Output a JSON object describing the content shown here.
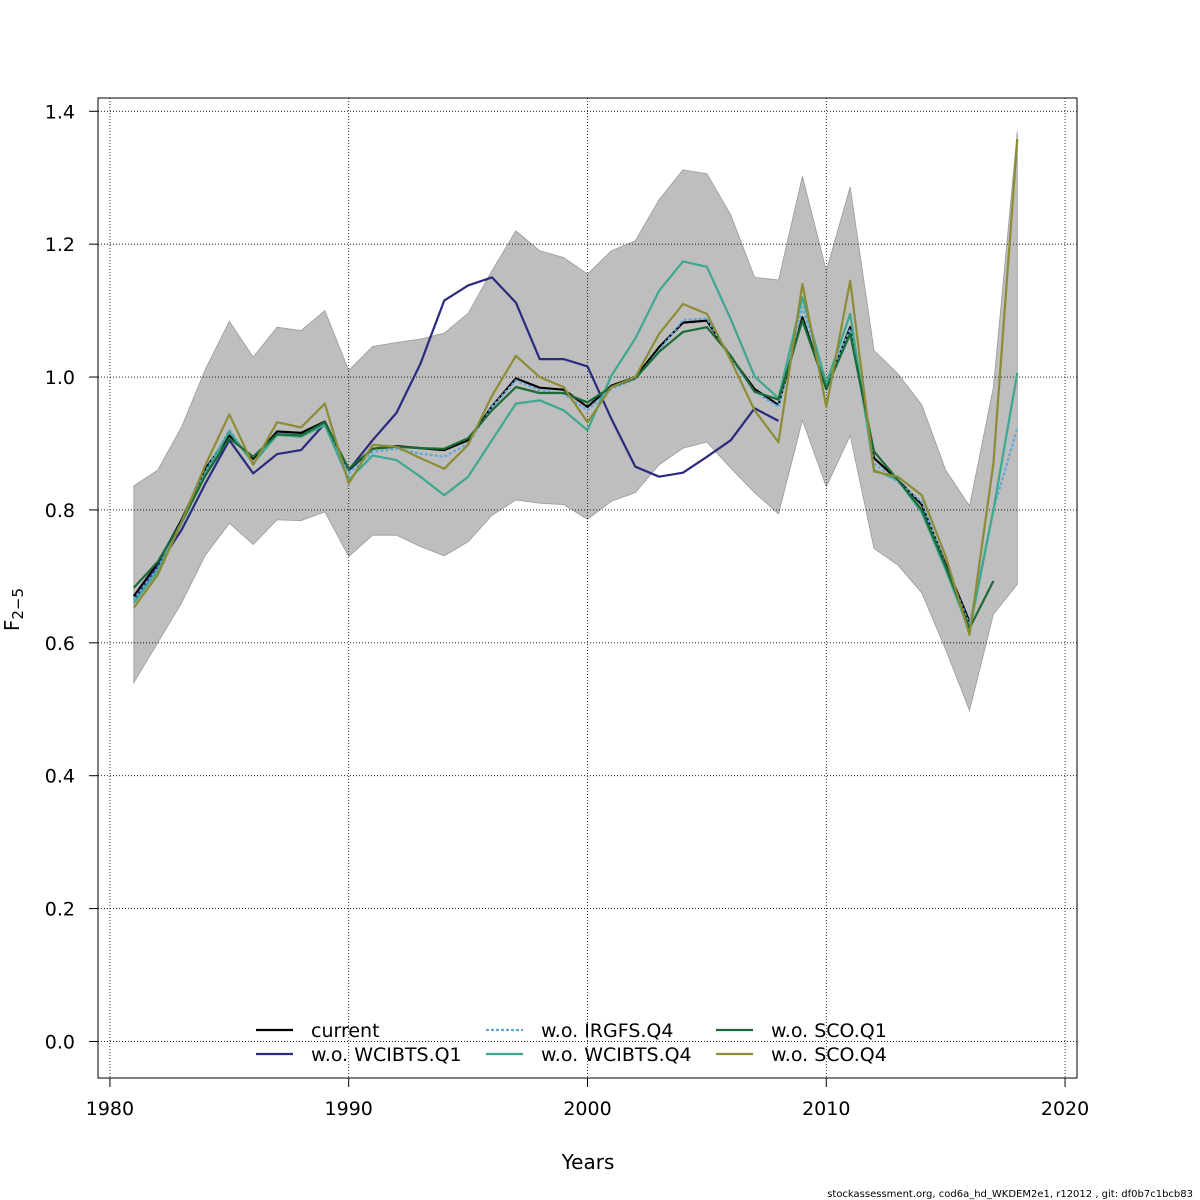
{
  "chart_data": {
    "type": "line",
    "title": "",
    "xlabel": "Years",
    "ylabel_main": "F",
    "ylabel_sub": "2−5",
    "xlim": [
      1979.5,
      2020.5
    ],
    "ylim": [
      -0.055,
      1.42
    ],
    "x_ticks": [
      1980,
      1990,
      2000,
      2010,
      2020
    ],
    "y_ticks": [
      0.0,
      0.2,
      0.4,
      0.6,
      0.8,
      1.0,
      1.2,
      1.4
    ],
    "grid": true,
    "legend_position": "bottom",
    "x": [
      1981,
      1982,
      1983,
      1984,
      1985,
      1986,
      1987,
      1988,
      1989,
      1990,
      1991,
      1992,
      1993,
      1994,
      1995,
      1996,
      1997,
      1998,
      1999,
      2000,
      2001,
      2002,
      2003,
      2004,
      2005,
      2006,
      2007,
      2008,
      2009,
      2010,
      2011,
      2012,
      2013,
      2014,
      2015,
      2016,
      2017,
      2018
    ],
    "band": {
      "color": "#bebebe",
      "upper": [
        0.836,
        0.86,
        0.925,
        1.012,
        1.084,
        1.03,
        1.075,
        1.07,
        1.1,
        1.01,
        1.046,
        1.052,
        1.057,
        1.066,
        1.096,
        1.16,
        1.22,
        1.19,
        1.18,
        1.155,
        1.19,
        1.205,
        1.267,
        1.312,
        1.306,
        1.244,
        1.15,
        1.146,
        1.302,
        1.16,
        1.286,
        1.04,
        1.005,
        0.958,
        0.86,
        0.806,
        0.985,
        1.37
      ],
      "lower": [
        0.54,
        0.6,
        0.66,
        0.732,
        0.78,
        0.748,
        0.785,
        0.784,
        0.797,
        0.73,
        0.762,
        0.762,
        0.745,
        0.731,
        0.752,
        0.792,
        0.815,
        0.81,
        0.808,
        0.786,
        0.813,
        0.826,
        0.868,
        0.893,
        0.902,
        0.863,
        0.826,
        0.794,
        0.935,
        0.835,
        0.912,
        0.742,
        0.717,
        0.675,
        0.59,
        0.498,
        0.643,
        0.688
      ]
    },
    "series": [
      {
        "name": "current",
        "color": "#000000",
        "dash": "",
        "values": [
          0.67,
          0.72,
          0.785,
          0.862,
          0.912,
          0.877,
          0.918,
          0.916,
          0.933,
          0.86,
          0.892,
          0.896,
          0.893,
          0.89,
          0.905,
          0.956,
          0.998,
          0.984,
          0.981,
          0.955,
          0.987,
          1.0,
          1.045,
          1.082,
          1.085,
          1.03,
          0.982,
          0.958,
          1.09,
          0.982,
          1.075,
          0.878,
          0.845,
          0.808,
          0.718,
          0.632,
          null,
          0.972
        ]
      },
      {
        "name": "w.o. WCIBTS.Q1",
        "color": "#2a2a7e",
        "dash": "",
        "values": [
          0.665,
          0.715,
          0.77,
          0.84,
          0.905,
          0.855,
          0.884,
          0.89,
          0.93,
          0.86,
          0.905,
          0.946,
          1.02,
          1.115,
          1.138,
          1.15,
          1.112,
          1.027,
          1.027,
          1.016,
          0.937,
          0.865,
          0.85,
          0.856,
          0.88,
          0.905,
          0.953,
          0.934,
          null,
          null,
          null,
          null,
          null,
          null,
          null,
          null,
          null,
          0.99
        ]
      },
      {
        "name": "w.o. IRGFS.Q4",
        "color": "#5fa8dc",
        "dash": "3,2",
        "values": [
          0.665,
          0.712,
          0.78,
          0.858,
          0.92,
          0.87,
          0.915,
          0.912,
          0.93,
          0.855,
          0.887,
          0.892,
          0.885,
          0.88,
          0.9,
          0.955,
          0.995,
          0.98,
          0.975,
          0.95,
          0.982,
          0.997,
          1.04,
          1.086,
          1.088,
          1.028,
          0.978,
          0.955,
          1.105,
          0.988,
          1.072,
          0.87,
          0.842,
          0.812,
          0.715,
          0.628,
          0.8,
          0.923
        ]
      },
      {
        "name": "w.o. WCIBTS.Q4",
        "color": "#3da88f",
        "dash": "",
        "values": [
          0.66,
          0.708,
          0.78,
          0.855,
          0.918,
          0.87,
          0.913,
          0.91,
          0.928,
          0.845,
          0.882,
          0.875,
          0.85,
          0.822,
          0.85,
          0.905,
          0.96,
          0.965,
          0.95,
          0.92,
          1.002,
          1.058,
          1.13,
          1.174,
          1.166,
          1.087,
          1.001,
          0.968,
          1.12,
          0.99,
          1.095,
          0.86,
          0.845,
          0.796,
          0.71,
          0.618,
          0.8,
          1.006
        ]
      },
      {
        "name": "w.o. SCO.Q1",
        "color": "#1a6b35",
        "dash": "",
        "values": [
          0.683,
          0.722,
          0.782,
          0.852,
          0.908,
          0.88,
          0.914,
          0.912,
          0.932,
          0.862,
          0.892,
          0.895,
          0.893,
          0.892,
          0.908,
          0.95,
          0.985,
          0.976,
          0.976,
          0.962,
          0.985,
          0.998,
          1.038,
          1.068,
          1.075,
          1.032,
          0.978,
          0.966,
          1.085,
          0.983,
          1.065,
          0.888,
          0.845,
          0.8,
          0.715,
          0.622,
          0.693,
          null
        ]
      },
      {
        "name": "w.o. SCO.Q4",
        "color": "#8c8c35",
        "dash": "",
        "values": [
          0.653,
          0.702,
          0.782,
          0.868,
          0.944,
          0.868,
          0.932,
          0.924,
          0.96,
          0.84,
          0.898,
          0.895,
          0.878,
          0.862,
          0.898,
          0.972,
          1.032,
          1.0,
          0.985,
          0.932,
          0.985,
          1.0,
          1.065,
          1.11,
          1.095,
          1.025,
          0.95,
          0.902,
          1.14,
          0.955,
          1.145,
          0.858,
          0.85,
          0.822,
          0.73,
          0.612,
          0.87,
          1.358
        ]
      }
    ],
    "legend": [
      {
        "label": "current",
        "series": 0
      },
      {
        "label": "w.o. WCIBTS.Q1",
        "series": 1
      },
      {
        "label": "w.o. IRGFS.Q4",
        "series": 2
      },
      {
        "label": "w.o. WCIBTS.Q4",
        "series": 3
      },
      {
        "label": "w.o. SCO.Q1",
        "series": 4
      },
      {
        "label": "w.o. SCO.Q4",
        "series": 5
      }
    ]
  },
  "footer": {
    "text": "stockassessment.org, cod6a_hd_WKDEM2e1, r12012 , git: df0b7c1bcb83"
  }
}
